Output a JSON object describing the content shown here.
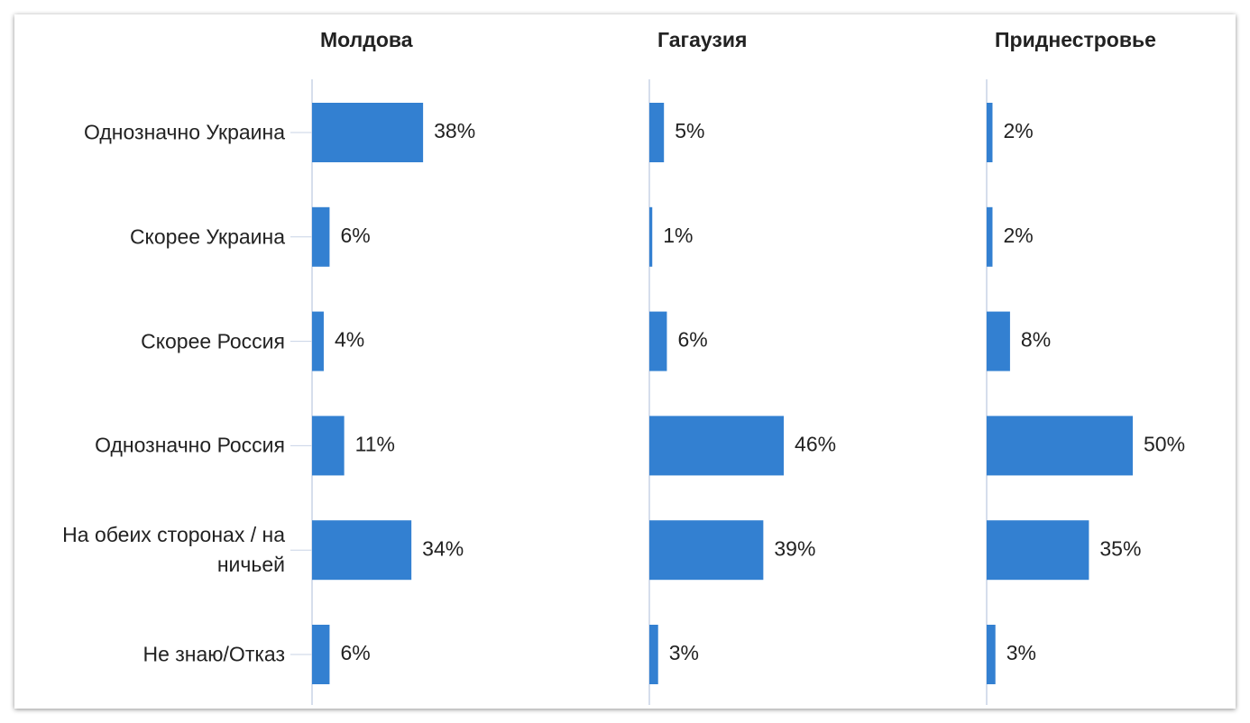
{
  "chart_data": {
    "type": "bar",
    "orientation": "horizontal",
    "categories": [
      "Однозначно Украина",
      "Скорее Украина",
      "Скорее Россия",
      "Однозначно Россия",
      "На обеих сторонах / на ничьей",
      "Не знаю/Отказ"
    ],
    "xlim": [
      0,
      100
    ],
    "series": [
      {
        "name": "Молдова",
        "color": "#3380d1",
        "values": [
          38,
          6,
          4,
          11,
          34,
          6
        ],
        "value_labels": [
          "38%",
          "6%",
          "4%",
          "11%",
          "34%",
          "6%"
        ]
      },
      {
        "name": "Гагаузия",
        "color": "#3380d1",
        "values": [
          5,
          1,
          6,
          46,
          39,
          3
        ],
        "value_labels": [
          "5%",
          "1%",
          "6%",
          "46%",
          "39%",
          "3%"
        ]
      },
      {
        "name": "Приднестровье",
        "color": "#3380d1",
        "values": [
          2,
          2,
          8,
          50,
          35,
          3
        ],
        "value_labels": [
          "2%",
          "2%",
          "8%",
          "50%",
          "35%",
          "3%"
        ]
      }
    ]
  }
}
